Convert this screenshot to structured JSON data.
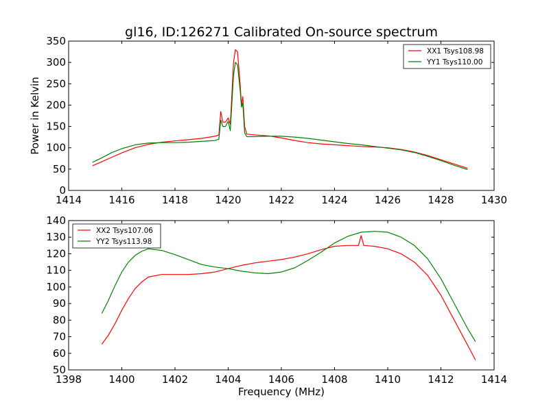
{
  "figure": {
    "title": "gl16, ID:126271 Calibrated On-source spectrum",
    "xlabel": "Frequency (MHz)",
    "ylabel": "Power in Kelvin"
  },
  "chart_data": [
    {
      "type": "line",
      "title": "gl16, ID:126271 Calibrated On-source spectrum",
      "xlabel": "",
      "ylabel": "Power in Kelvin",
      "xlim": [
        1414,
        1430
      ],
      "ylim": [
        0,
        350
      ],
      "xticks": [
        1414,
        1416,
        1418,
        1420,
        1422,
        1424,
        1426,
        1428,
        1430
      ],
      "yticks": [
        0,
        50,
        100,
        150,
        200,
        250,
        300,
        350
      ],
      "grid": false,
      "legend_position": "top-right",
      "series": [
        {
          "name": "XX1 Tsys108.98",
          "color": "#ff0000",
          "x": [
            1414.9,
            1415.2,
            1415.6,
            1416.0,
            1416.5,
            1417.0,
            1417.5,
            1418.0,
            1418.5,
            1419.0,
            1419.5,
            1419.65,
            1419.72,
            1419.8,
            1419.9,
            1420.0,
            1420.08,
            1420.2,
            1420.27,
            1420.35,
            1420.45,
            1420.5,
            1420.55,
            1420.62,
            1420.7,
            1421.0,
            1421.5,
            1422.0,
            1422.5,
            1423.0,
            1423.5,
            1424.0,
            1424.5,
            1425.0,
            1425.5,
            1426.0,
            1426.5,
            1427.0,
            1427.5,
            1428.0,
            1428.5,
            1429.0
          ],
          "y": [
            58,
            66,
            77,
            88,
            100,
            108,
            113,
            116,
            119,
            122,
            127,
            130,
            185,
            160,
            160,
            170,
            155,
            300,
            330,
            325,
            250,
            200,
            220,
            150,
            132,
            130,
            128,
            123,
            117,
            112,
            109,
            107,
            105,
            103,
            102,
            100,
            96,
            90,
            82,
            72,
            62,
            52
          ]
        },
        {
          "name": "YY1 Tsys110.00",
          "color": "#008000",
          "x": [
            1414.9,
            1415.2,
            1415.6,
            1416.0,
            1416.5,
            1417.0,
            1417.5,
            1418.0,
            1418.5,
            1419.0,
            1419.5,
            1419.65,
            1419.72,
            1419.8,
            1419.9,
            1420.0,
            1420.08,
            1420.2,
            1420.27,
            1420.35,
            1420.45,
            1420.5,
            1420.55,
            1420.62,
            1420.7,
            1421.0,
            1421.5,
            1422.0,
            1422.5,
            1423.0,
            1423.5,
            1424.0,
            1424.5,
            1425.0,
            1425.5,
            1426.0,
            1426.5,
            1427.0,
            1427.5,
            1428.0,
            1428.5,
            1429.0
          ],
          "y": [
            66,
            75,
            88,
            98,
            107,
            111,
            112,
            112,
            113,
            115,
            117,
            120,
            165,
            150,
            150,
            162,
            140,
            270,
            300,
            295,
            235,
            195,
            205,
            135,
            126,
            126,
            127,
            127,
            125,
            122,
            118,
            114,
            110,
            107,
            103,
            99,
            95,
            89,
            80,
            70,
            59,
            49
          ]
        }
      ]
    },
    {
      "type": "line",
      "title": "",
      "xlabel": "Frequency (MHz)",
      "ylabel": "",
      "xlim": [
        1398,
        1414
      ],
      "ylim": [
        50,
        140
      ],
      "xticks": [
        1398,
        1400,
        1402,
        1404,
        1406,
        1408,
        1410,
        1412,
        1414
      ],
      "yticks": [
        50,
        60,
        70,
        80,
        90,
        100,
        110,
        120,
        130,
        140
      ],
      "grid": false,
      "legend_position": "top-left",
      "series": [
        {
          "name": "XX2 Tsys107.06",
          "color": "#ff0000",
          "x": [
            1399.25,
            1399.5,
            1399.75,
            1400.0,
            1400.25,
            1400.5,
            1400.75,
            1401.0,
            1401.5,
            1402.0,
            1402.5,
            1403.0,
            1403.5,
            1404.0,
            1404.5,
            1405.0,
            1405.5,
            1406.0,
            1406.5,
            1407.0,
            1407.5,
            1408.0,
            1408.5,
            1408.9,
            1409.0,
            1409.1,
            1409.5,
            1410.0,
            1410.5,
            1411.0,
            1411.5,
            1412.0,
            1412.5,
            1413.0,
            1413.3
          ],
          "y": [
            65.5,
            71,
            78,
            86,
            93,
            99,
            103,
            106,
            107.5,
            107.5,
            107.5,
            108,
            109,
            111,
            113,
            114.5,
            115.5,
            116.5,
            118,
            120,
            122.5,
            124.5,
            125,
            125,
            131,
            125,
            124.5,
            123,
            120,
            115,
            107,
            95,
            80,
            65,
            56
          ]
        },
        {
          "name": "YY2 Tsys113.98",
          "color": "#008000",
          "x": [
            1399.25,
            1399.5,
            1399.75,
            1400.0,
            1400.25,
            1400.5,
            1400.75,
            1401.0,
            1401.5,
            1402.0,
            1402.5,
            1403.0,
            1403.5,
            1404.0,
            1404.5,
            1405.0,
            1405.5,
            1406.0,
            1406.5,
            1407.0,
            1407.5,
            1408.0,
            1408.5,
            1409.0,
            1409.5,
            1410.0,
            1410.5,
            1411.0,
            1411.5,
            1412.0,
            1412.5,
            1413.0,
            1413.3
          ],
          "y": [
            84,
            92,
            101,
            109,
            115,
            119,
            121.5,
            123,
            122,
            119.5,
            116.5,
            113.5,
            112,
            111,
            109.5,
            108.5,
            108,
            109,
            111.5,
            116,
            121,
            126.5,
            130.5,
            133,
            133.5,
            133,
            130,
            125,
            117,
            105,
            90,
            75,
            67
          ]
        }
      ]
    }
  ]
}
